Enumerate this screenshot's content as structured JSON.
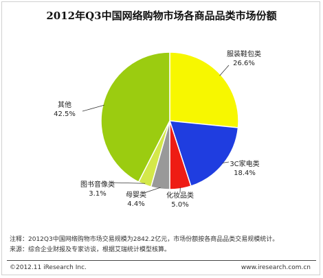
{
  "chart_data": {
    "type": "pie",
    "title": "2012年Q3中国网络购物市场各商品品类市场份额",
    "unit": "%",
    "slices": [
      {
        "label": "服装鞋包类",
        "value": 26.6,
        "value_label": "26.6%",
        "color": "#f7f700"
      },
      {
        "label": "3C家电类",
        "value": 18.4,
        "value_label": "18.4%",
        "color": "#1f3de0"
      },
      {
        "label": "化妆品类",
        "value": 5.0,
        "value_label": "5.0%",
        "color": "#ee1c14"
      },
      {
        "label": "母婴类",
        "value": 4.4,
        "value_label": "4.4%",
        "color": "#999999"
      },
      {
        "label": "图书音像类",
        "value": 3.1,
        "value_label": "3.1%",
        "color": "#d4e84a"
      },
      {
        "label": "其他",
        "value": 42.5,
        "value_label": "42.5%",
        "color": "#9bcc10"
      }
    ],
    "start_position": "top",
    "direction": "clockwise"
  },
  "notes": {
    "note": "注释：2012Q3中国网络购物市场交易规模为2842.2亿元，市场份额按各商品品类交易规模统计。",
    "source": "来源：综合企业财报及专家访谈，根据艾瑞统计模型核算。"
  },
  "footer": {
    "copyright": "©2012.11 iResearch Inc.",
    "website": "www.iresearch.com.cn"
  }
}
